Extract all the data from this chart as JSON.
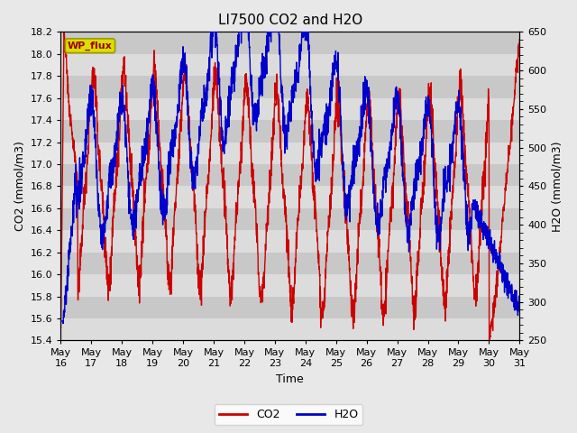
{
  "title": "LI7500 CO2 and H2O",
  "xlabel": "Time",
  "ylabel_left": "CO2 (mmol/m3)",
  "ylabel_right": "H2O (mmol/m3)",
  "legend_label": "WP_flux",
  "co2_label": "CO2",
  "h2o_label": "H2O",
  "co2_color": "#cc0000",
  "h2o_color": "#0000cc",
  "co2_ylim": [
    15.4,
    18.2
  ],
  "h2o_ylim": [
    250,
    650
  ],
  "x_tick_labels": [
    "May 16",
    "May 17",
    "May 18",
    "May 19",
    "May 20",
    "May 21",
    "May 22",
    "May 23",
    "May 24",
    "May 25",
    "May 26",
    "May 27",
    "May 28",
    "May 29",
    "May 30",
    "May 31"
  ],
  "fig_bg_color": "#e8e8e8",
  "plot_bg_upper": "#dcdcdc",
  "plot_bg_lower": "#c8c8c8",
  "legend_box_facecolor": "#dddd00",
  "legend_box_edgecolor": "#999900",
  "title_fontsize": 11,
  "axis_label_fontsize": 9,
  "tick_fontsize": 8,
  "legend_fontsize": 9,
  "line_width": 1.0
}
